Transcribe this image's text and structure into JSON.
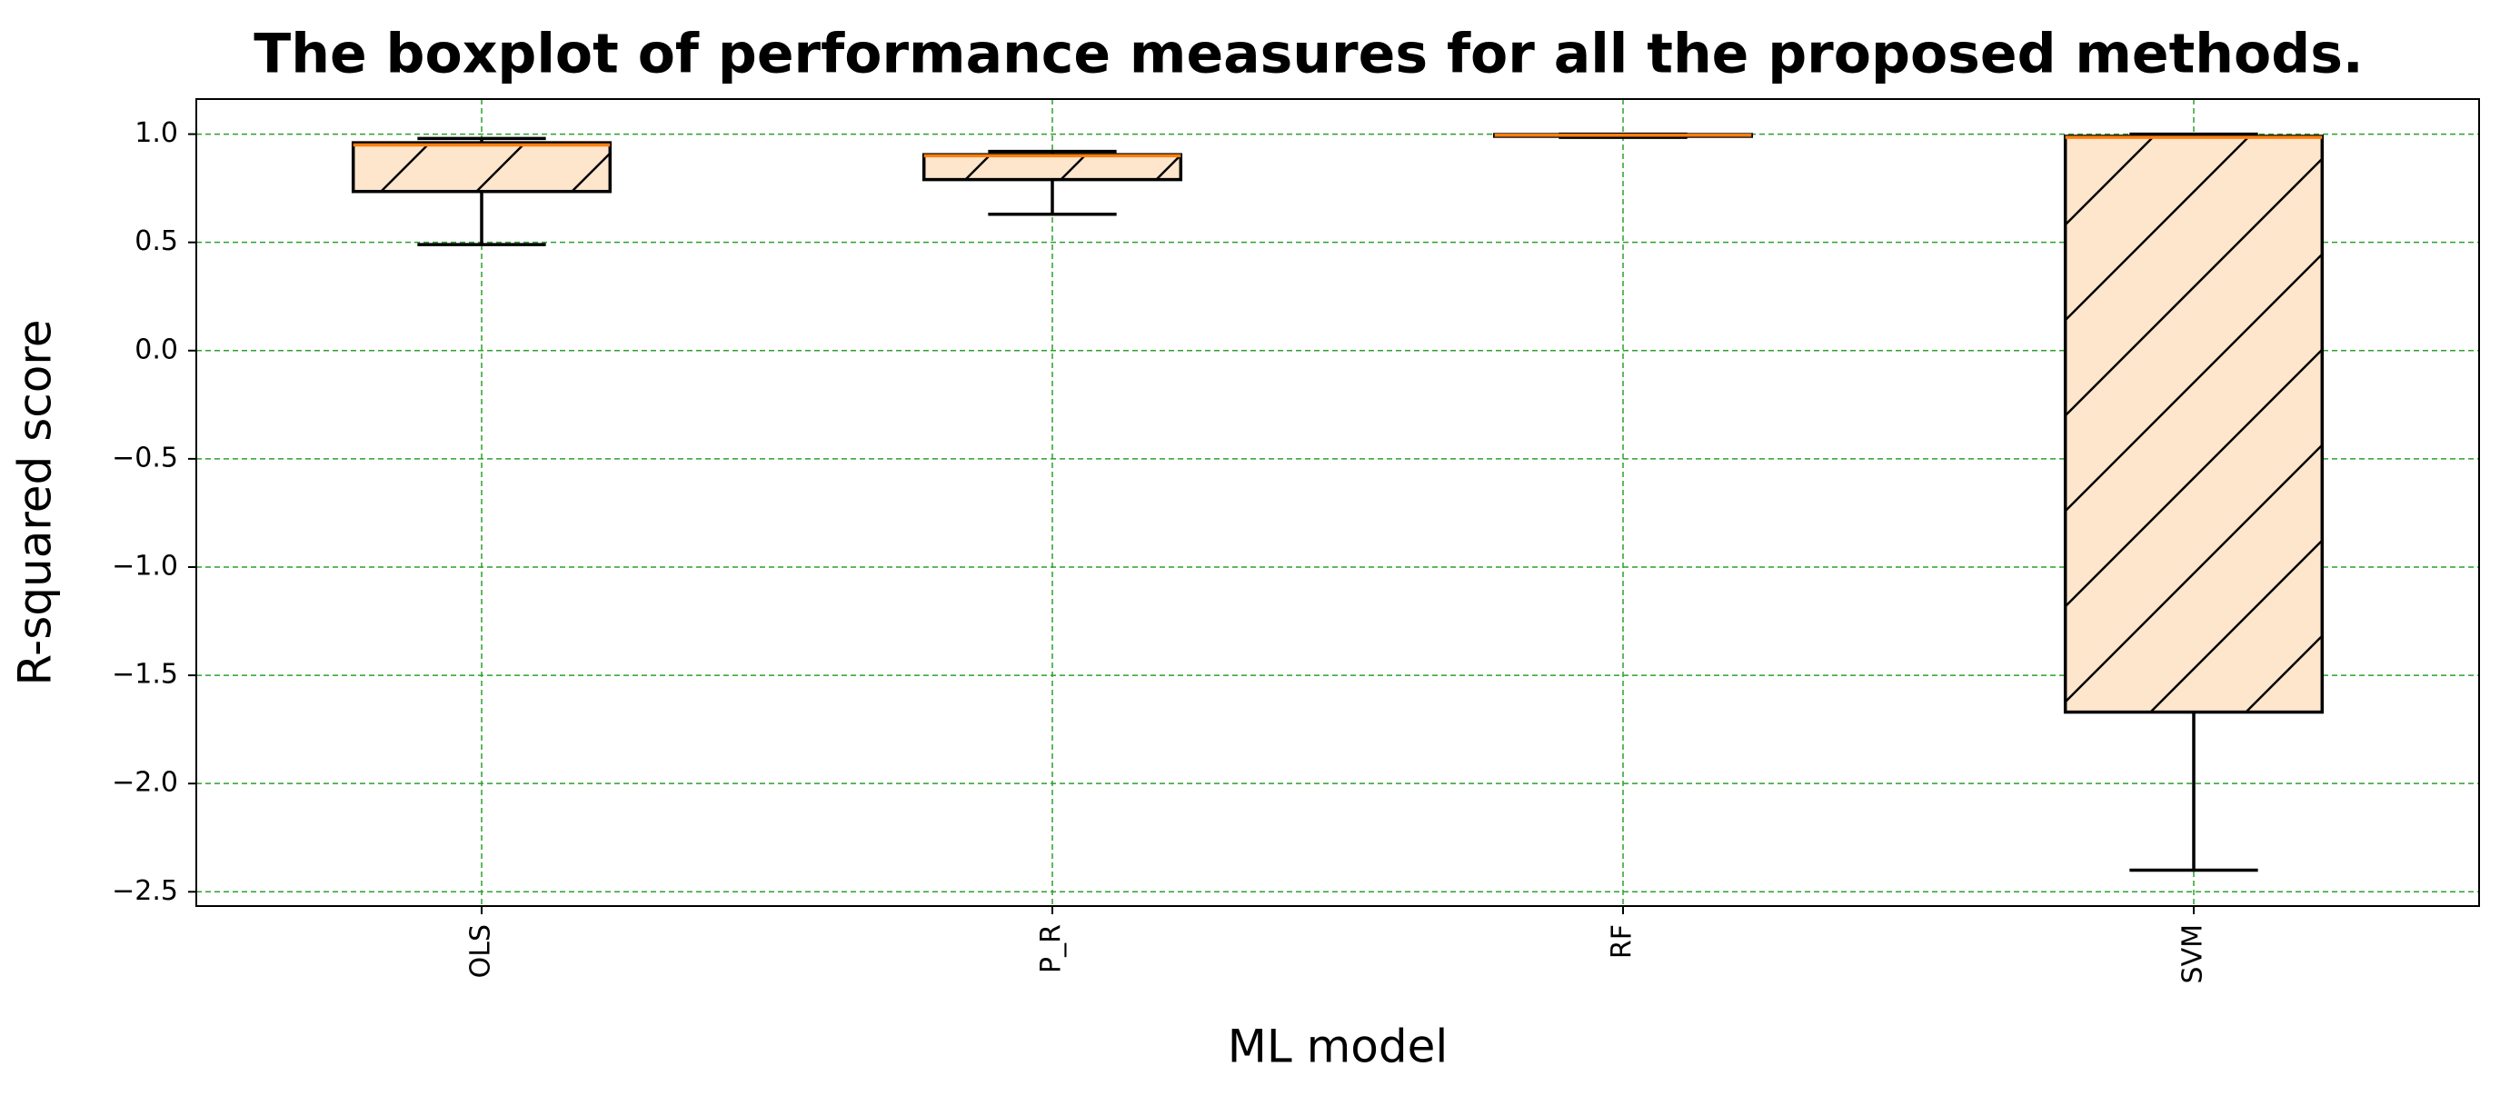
{
  "chart_data": {
    "type": "box",
    "title": "The boxplot of performance measures for all the proposed methods.",
    "x_label": "ML model",
    "y_label": "R-squared score",
    "categories": [
      "OLS",
      "P_R",
      "RF",
      "SVM"
    ],
    "boxes": [
      {
        "whislo": 0.49,
        "q1": 0.735,
        "med": 0.95,
        "q3": 0.96,
        "whishi": 0.98
      },
      {
        "whislo": 0.63,
        "q1": 0.79,
        "med": 0.9,
        "q3": 0.905,
        "whishi": 0.92
      },
      {
        "whislo": 0.985,
        "q1": 0.99,
        "med": 0.995,
        "q3": 0.998,
        "whishi": 1.0
      },
      {
        "whislo": -2.4,
        "q1": -1.67,
        "med": 0.985,
        "q3": 0.99,
        "whishi": 1.0
      }
    ],
    "box_color": "#fde6cc",
    "median_color": "#ff7f0e",
    "grid": true,
    "grid_color": "#2ca02c",
    "ylim": [
      -2.566,
      1.162
    ],
    "yticks": [
      {
        "value": -2.5,
        "label": "−2.5"
      },
      {
        "value": -2.0,
        "label": "−2.0"
      },
      {
        "value": -1.5,
        "label": "−1.5"
      },
      {
        "value": -1.0,
        "label": "−1.0"
      },
      {
        "value": -0.5,
        "label": "−0.5"
      },
      {
        "value": 0.0,
        "label": "0.0"
      },
      {
        "value": 0.5,
        "label": "0.5"
      },
      {
        "value": 1.0,
        "label": "1.0"
      }
    ]
  }
}
